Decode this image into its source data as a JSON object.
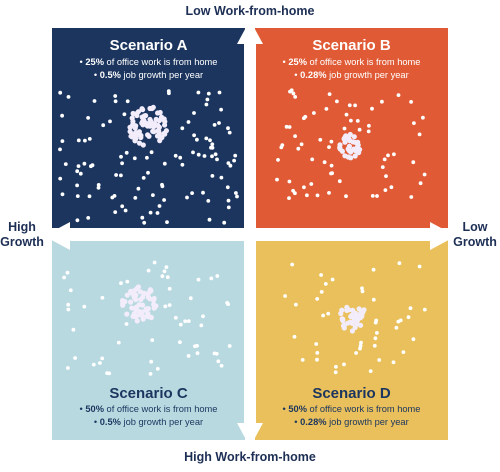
{
  "axes": {
    "top": "Low Work-from-home",
    "bottom": "High Work-from-home",
    "left": "High Growth",
    "right": "Low Growth"
  },
  "quadrants": {
    "a": {
      "title": "Scenario A",
      "wfh_value": "25%",
      "wfh_text": " of office work is from home",
      "growth_value": "0.5%",
      "growth_text": " job growth per year"
    },
    "b": {
      "title": "Scenario B",
      "wfh_value": "25%",
      "wfh_text": " of office work is from home",
      "growth_value": "0.28%",
      "growth_text": " job growth per year"
    },
    "c": {
      "title": "Scenario C",
      "wfh_value": "50%",
      "wfh_text": " of office work is from home",
      "growth_value": "0.5%",
      "growth_text": " job growth per year"
    },
    "d": {
      "title": "Scenario D",
      "wfh_value": "50%",
      "wfh_text": " of office work is from home",
      "growth_value": "0.28%",
      "growth_text": " job growth per year"
    }
  },
  "colors": {
    "scenario_a": "#1b355f",
    "scenario_b": "#df5a35",
    "scenario_c": "#b9d9e0",
    "scenario_d": "#e9c05b",
    "arrows": "#ffffff",
    "dots": "#ffffff"
  }
}
